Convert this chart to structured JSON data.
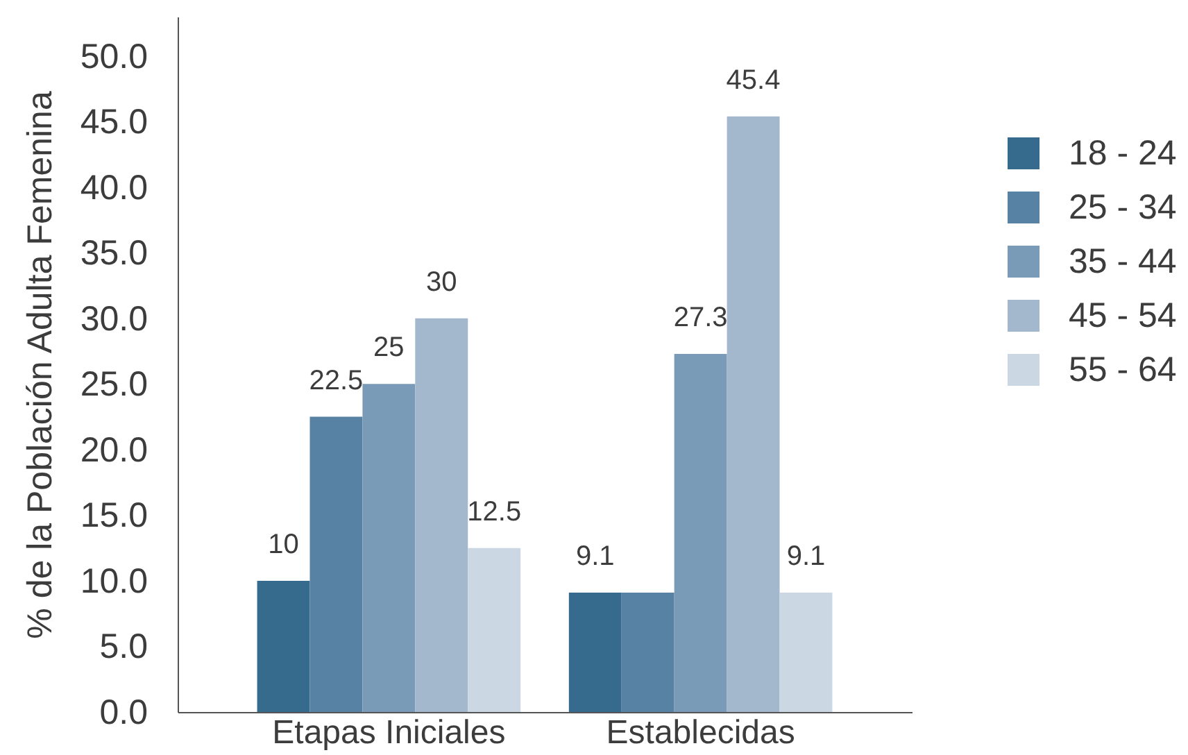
{
  "chart_data": {
    "type": "bar",
    "ylabel": "% de la Población Adulta Femenina",
    "categories": [
      "Etapas Iniciales",
      "Establecidas"
    ],
    "series": [
      {
        "name": "18 - 24",
        "color": "#376b8d",
        "values": [
          10,
          9.1
        ],
        "value_labels": [
          "10",
          "9.1"
        ]
      },
      {
        "name": "25 - 34",
        "color": "#5782a3",
        "values": [
          22.5,
          9.1
        ],
        "value_labels": [
          "22.5",
          null
        ]
      },
      {
        "name": "35 - 44",
        "color": "#7a9bb7",
        "values": [
          25,
          27.3
        ],
        "value_labels": [
          "25",
          "27.3"
        ]
      },
      {
        "name": "45 - 54",
        "color": "#a3b7cd",
        "values": [
          30,
          45.4
        ],
        "value_labels": [
          "30",
          "45.4"
        ]
      },
      {
        "name": "55 - 64",
        "color": "#cbd7e2",
        "values": [
          12.5,
          9.1
        ],
        "value_labels": [
          "12.5",
          "9.1"
        ]
      }
    ],
    "ylim": [
      0,
      53
    ],
    "yticks": [
      {
        "value": 0,
        "label": "0.0"
      },
      {
        "value": 5,
        "label": "5.0"
      },
      {
        "value": 10,
        "label": "10.0"
      },
      {
        "value": 15,
        "label": "15.0"
      },
      {
        "value": 20,
        "label": "20.0"
      },
      {
        "value": 25,
        "label": "25.0"
      },
      {
        "value": 30,
        "label": "30.0"
      },
      {
        "value": 35,
        "label": "35.0"
      },
      {
        "value": 40,
        "label": "40.0"
      },
      {
        "value": 45,
        "label": "45.0"
      },
      {
        "value": 50,
        "label": "50.0"
      }
    ],
    "grid": false,
    "legend": "right"
  }
}
